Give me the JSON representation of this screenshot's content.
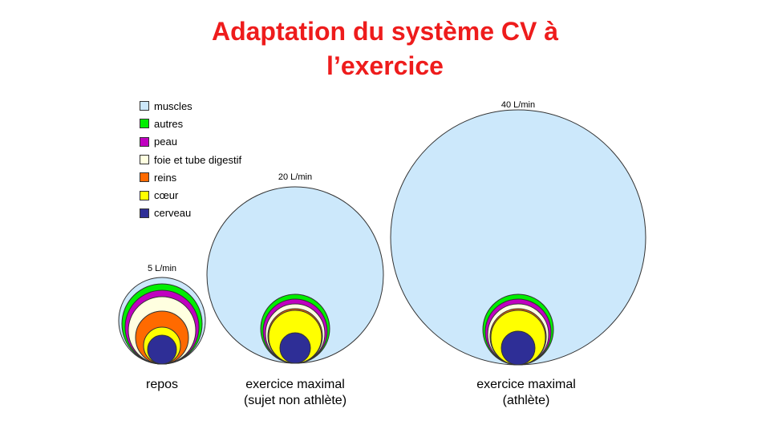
{
  "title": {
    "line1": "Adaptation du système CV à",
    "line2": "l’exercice"
  },
  "legend": [
    {
      "label": "muscles",
      "color": "#cce8fb"
    },
    {
      "label": "autres",
      "color": "#00ee00"
    },
    {
      "label": "peau",
      "color": "#c000c0"
    },
    {
      "label": "foie et tube digestif",
      "color": "#ffffe0"
    },
    {
      "label": "reins",
      "color": "#ff6a00"
    },
    {
      "label": "cœur",
      "color": "#ffff00"
    },
    {
      "label": "cerveau",
      "color": "#2e2e96"
    }
  ],
  "panels": [
    {
      "flow": "5 L/min",
      "caption_line1": "repos",
      "caption_line2": ""
    },
    {
      "flow": "20 L/min",
      "caption_line1": "exercice maximal",
      "caption_line2": "(sujet non athlète)"
    },
    {
      "flow": "40 L/min",
      "caption_line1": "exercice maximal",
      "caption_line2": "(athlète)"
    }
  ]
}
